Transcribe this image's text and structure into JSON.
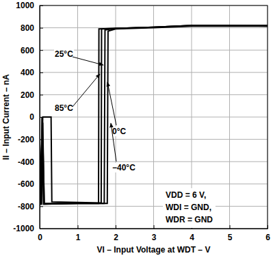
{
  "chart_data": {
    "type": "line",
    "x_label": "VI – Input Voltage at WDT – V",
    "y_label": "II – Input Current – nA",
    "xlim": [
      0,
      6
    ],
    "xticks": [
      0,
      1,
      2,
      3,
      4,
      5,
      6
    ],
    "ylim": [
      -1000,
      1000
    ],
    "yticks": [
      -1000,
      -800,
      -600,
      -400,
      -200,
      0,
      200,
      400,
      600,
      800,
      1000
    ],
    "grid": true,
    "color": "#000000",
    "annotations": [
      "VDD = 6 V,",
      "WDI = GND,",
      "WDR = GND"
    ],
    "series": [
      {
        "name": "25°C",
        "color": "#000000",
        "x": [
          0,
          0.05,
          0.08,
          0.3,
          0.32,
          1.0,
          1.62,
          1.63,
          2,
          3,
          4,
          5,
          6
        ],
        "values": [
          -780,
          -780,
          0,
          0,
          -760,
          -765,
          -770,
          790,
          795,
          805,
          820,
          820,
          815
        ]
      },
      {
        "name": "85°C",
        "color": "#000000",
        "x": [
          0,
          0.03,
          0.06,
          0.1,
          0.15,
          1.0,
          1.55,
          1.56,
          2,
          3,
          4,
          5,
          6
        ],
        "values": [
          -780,
          -780,
          0,
          -780,
          -775,
          -775,
          -775,
          790,
          795,
          805,
          820,
          820,
          820
        ]
      },
      {
        "name": "0°C",
        "color": "#000000",
        "x": [
          0,
          0.04,
          0.07,
          0.12,
          1.0,
          1.7,
          1.72,
          2,
          3,
          4,
          5,
          6
        ],
        "values": [
          -780,
          -400,
          0,
          -780,
          -775,
          -775,
          780,
          795,
          805,
          820,
          820,
          820
        ]
      },
      {
        "name": "−40°C",
        "color": "#000000",
        "x": [
          0,
          0.03,
          0.08,
          0.12,
          1.0,
          1.78,
          1.8,
          2,
          3,
          4,
          5,
          6
        ],
        "values": [
          -780,
          -420,
          -50,
          -780,
          -775,
          -775,
          770,
          790,
          800,
          815,
          815,
          815
        ]
      }
    ]
  }
}
